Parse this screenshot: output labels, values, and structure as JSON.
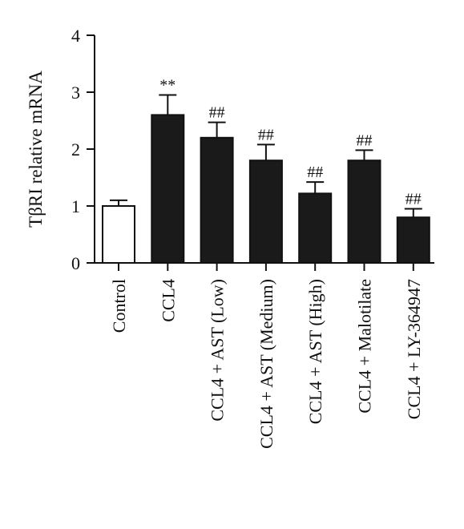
{
  "chart_data": {
    "type": "bar",
    "ylabel": "TβRI relative mRNA",
    "ylim": [
      0,
      4
    ],
    "yticks": [
      "0",
      "1",
      "2",
      "3",
      "4"
    ],
    "categories": [
      "Control",
      "CCL4",
      "CCL4 + AST (Low)",
      "CCL4 + AST (Medium)",
      "CCL4 + AST (High)",
      "CCL4 + Malotilate",
      "CCL4 + LY-364947"
    ],
    "values": [
      1.0,
      2.6,
      2.2,
      1.8,
      1.22,
      1.8,
      0.8
    ],
    "errors": [
      0.1,
      0.35,
      0.27,
      0.28,
      0.2,
      0.18,
      0.15
    ],
    "annotations": [
      "",
      "**",
      "##",
      "##",
      "##",
      "##",
      "##"
    ],
    "bar_colors": [
      "#ffffff",
      "#1a1a1a",
      "#1a1a1a",
      "#1a1a1a",
      "#1a1a1a",
      "#1a1a1a",
      "#1a1a1a"
    ],
    "grid": false,
    "legend": "none"
  }
}
